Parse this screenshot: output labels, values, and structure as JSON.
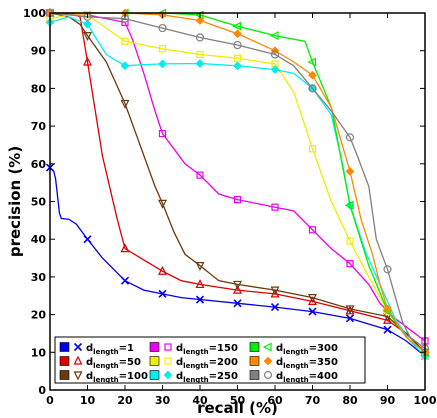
{
  "chart_data": {
    "type": "line",
    "title": "",
    "xlabel": "recall (%)",
    "ylabel": "precision (%)",
    "xlim": [
      0,
      100
    ],
    "ylim": [
      0,
      100
    ],
    "xticks": [
      "0",
      "10",
      "20",
      "30",
      "40",
      "50",
      "60",
      "70",
      "80",
      "90",
      "100"
    ],
    "yticks": [
      "0",
      "10",
      "20",
      "30",
      "40",
      "50",
      "60",
      "70",
      "80",
      "90",
      "100"
    ],
    "legend_placement": "bottom-left",
    "grid": false,
    "series": [
      {
        "name_base": "d",
        "name_sub": "length",
        "name_value": "=1",
        "color": "#0000ee",
        "marker": "x",
        "points": [
          [
            0,
            59
          ],
          [
            1,
            58
          ],
          [
            1.5,
            56
          ],
          [
            2.5,
            47
          ],
          [
            3,
            45.5
          ],
          [
            5,
            45.3
          ],
          [
            7,
            44
          ],
          [
            10,
            40
          ],
          [
            14,
            35
          ],
          [
            17,
            32
          ],
          [
            20,
            29
          ],
          [
            25,
            26.5
          ],
          [
            30,
            25.5
          ],
          [
            35,
            24.5
          ],
          [
            40,
            24
          ],
          [
            50,
            23
          ],
          [
            60,
            22
          ],
          [
            70,
            20.8
          ],
          [
            80,
            19
          ],
          [
            90,
            16
          ],
          [
            95,
            13
          ],
          [
            100,
            9
          ]
        ]
      },
      {
        "name_base": "d",
        "name_sub": "length",
        "name_value": "=50",
        "color": "#dd0000",
        "marker": "triangle-up",
        "points": [
          [
            0,
            100
          ],
          [
            5,
            100
          ],
          [
            8,
            99
          ],
          [
            10,
            87
          ],
          [
            14,
            62
          ],
          [
            18,
            45
          ],
          [
            20,
            37.5
          ],
          [
            25,
            34.5
          ],
          [
            30,
            31.5
          ],
          [
            35,
            29
          ],
          [
            40,
            28
          ],
          [
            50,
            26.5
          ],
          [
            60,
            25.5
          ],
          [
            70,
            23.5
          ],
          [
            80,
            21
          ],
          [
            90,
            18.5
          ],
          [
            95,
            15
          ],
          [
            100,
            10
          ]
        ]
      },
      {
        "name_base": "d",
        "name_sub": "length",
        "name_value": "=100",
        "color": "#6b3a10",
        "marker": "triangle-down",
        "points": [
          [
            0,
            100
          ],
          [
            5,
            99
          ],
          [
            8,
            97
          ],
          [
            10,
            94
          ],
          [
            15,
            87
          ],
          [
            20,
            76
          ],
          [
            24,
            65
          ],
          [
            28,
            54
          ],
          [
            30,
            49.5
          ],
          [
            33,
            42
          ],
          [
            36,
            36
          ],
          [
            40,
            33
          ],
          [
            45,
            29
          ],
          [
            50,
            28
          ],
          [
            60,
            26.5
          ],
          [
            70,
            24.5
          ],
          [
            80,
            21.5
          ],
          [
            90,
            19.5
          ],
          [
            95,
            15
          ],
          [
            100,
            10
          ]
        ]
      },
      {
        "name_base": "d",
        "name_sub": "length",
        "name_value": "=150",
        "color": "#ee00ee",
        "marker": "square",
        "points": [
          [
            0,
            100
          ],
          [
            10,
            99.5
          ],
          [
            20,
            97.5
          ],
          [
            22,
            93
          ],
          [
            25,
            84
          ],
          [
            28,
            74
          ],
          [
            30,
            68
          ],
          [
            33,
            64
          ],
          [
            36,
            60
          ],
          [
            40,
            57
          ],
          [
            45,
            52
          ],
          [
            50,
            50.5
          ],
          [
            55,
            49.5
          ],
          [
            60,
            48.5
          ],
          [
            65,
            47.5
          ],
          [
            70,
            42.5
          ],
          [
            75,
            37.5
          ],
          [
            80,
            33.5
          ],
          [
            85,
            28
          ],
          [
            88,
            23
          ],
          [
            92,
            19
          ],
          [
            96,
            16
          ],
          [
            100,
            13
          ]
        ]
      },
      {
        "name_base": "d",
        "name_sub": "length",
        "name_value": "=200",
        "color": "#eeee00",
        "marker": "square",
        "points": [
          [
            0,
            98.5
          ],
          [
            5,
            99.5
          ],
          [
            10,
            99.5
          ],
          [
            15,
            96
          ],
          [
            20,
            92.5
          ],
          [
            25,
            91.5
          ],
          [
            30,
            90.5
          ],
          [
            40,
            89
          ],
          [
            50,
            88
          ],
          [
            60,
            86.5
          ],
          [
            65,
            79
          ],
          [
            70,
            64
          ],
          [
            75,
            50
          ],
          [
            80,
            39.5
          ],
          [
            85,
            30
          ],
          [
            90,
            21
          ],
          [
            95,
            14
          ],
          [
            100,
            9
          ]
        ]
      },
      {
        "name_base": "d",
        "name_sub": "length",
        "name_value": "=250",
        "color": "#00eeee",
        "marker": "diamond",
        "points": [
          [
            0,
            97.5
          ],
          [
            5,
            99
          ],
          [
            10,
            97
          ],
          [
            15,
            89
          ],
          [
            20,
            86
          ],
          [
            25,
            86.3
          ],
          [
            30,
            86.5
          ],
          [
            40,
            86.6
          ],
          [
            50,
            86
          ],
          [
            60,
            85
          ],
          [
            65,
            84
          ],
          [
            70,
            80
          ],
          [
            75,
            73
          ],
          [
            78,
            60
          ],
          [
            80,
            49
          ],
          [
            84,
            37
          ],
          [
            88,
            28
          ],
          [
            92,
            19
          ],
          [
            96,
            13
          ],
          [
            100,
            9
          ]
        ]
      },
      {
        "name_base": "d",
        "name_sub": "length",
        "name_value": "=300",
        "color": "#00ee00",
        "marker": "triangle-left",
        "points": [
          [
            0,
            100
          ],
          [
            20,
            100
          ],
          [
            30,
            100
          ],
          [
            40,
            99.5
          ],
          [
            50,
            96.5
          ],
          [
            60,
            94
          ],
          [
            68,
            92.5
          ],
          [
            70,
            87
          ],
          [
            75,
            75
          ],
          [
            80,
            49
          ],
          [
            85,
            33
          ],
          [
            90,
            21
          ],
          [
            95,
            14
          ],
          [
            100,
            10
          ]
        ]
      },
      {
        "name_base": "d",
        "name_sub": "length",
        "name_value": "=350",
        "color": "#ff8800",
        "marker": "diamond",
        "points": [
          [
            0,
            100
          ],
          [
            20,
            100
          ],
          [
            30,
            99.5
          ],
          [
            40,
            98
          ],
          [
            50,
            94.5
          ],
          [
            60,
            90
          ],
          [
            65,
            87
          ],
          [
            70,
            83.5
          ],
          [
            75,
            75
          ],
          [
            80,
            58
          ],
          [
            83,
            45
          ],
          [
            86,
            36
          ],
          [
            88,
            28
          ],
          [
            90,
            21.5
          ],
          [
            95,
            14
          ],
          [
            100,
            10
          ]
        ]
      },
      {
        "name_base": "d",
        "name_sub": "length",
        "name_value": "=400",
        "color": "#808080",
        "marker": "circle",
        "points": [
          [
            0,
            100
          ],
          [
            10,
            99
          ],
          [
            20,
            98.5
          ],
          [
            30,
            96
          ],
          [
            40,
            93.5
          ],
          [
            50,
            91.5
          ],
          [
            60,
            89
          ],
          [
            65,
            86
          ],
          [
            70,
            80
          ],
          [
            75,
            74
          ],
          [
            80,
            67
          ],
          [
            82,
            62
          ],
          [
            85,
            54
          ],
          [
            87,
            40
          ],
          [
            90,
            32
          ],
          [
            92,
            25
          ],
          [
            94,
            18
          ],
          [
            96,
            14
          ],
          [
            100,
            11
          ]
        ]
      }
    ]
  }
}
